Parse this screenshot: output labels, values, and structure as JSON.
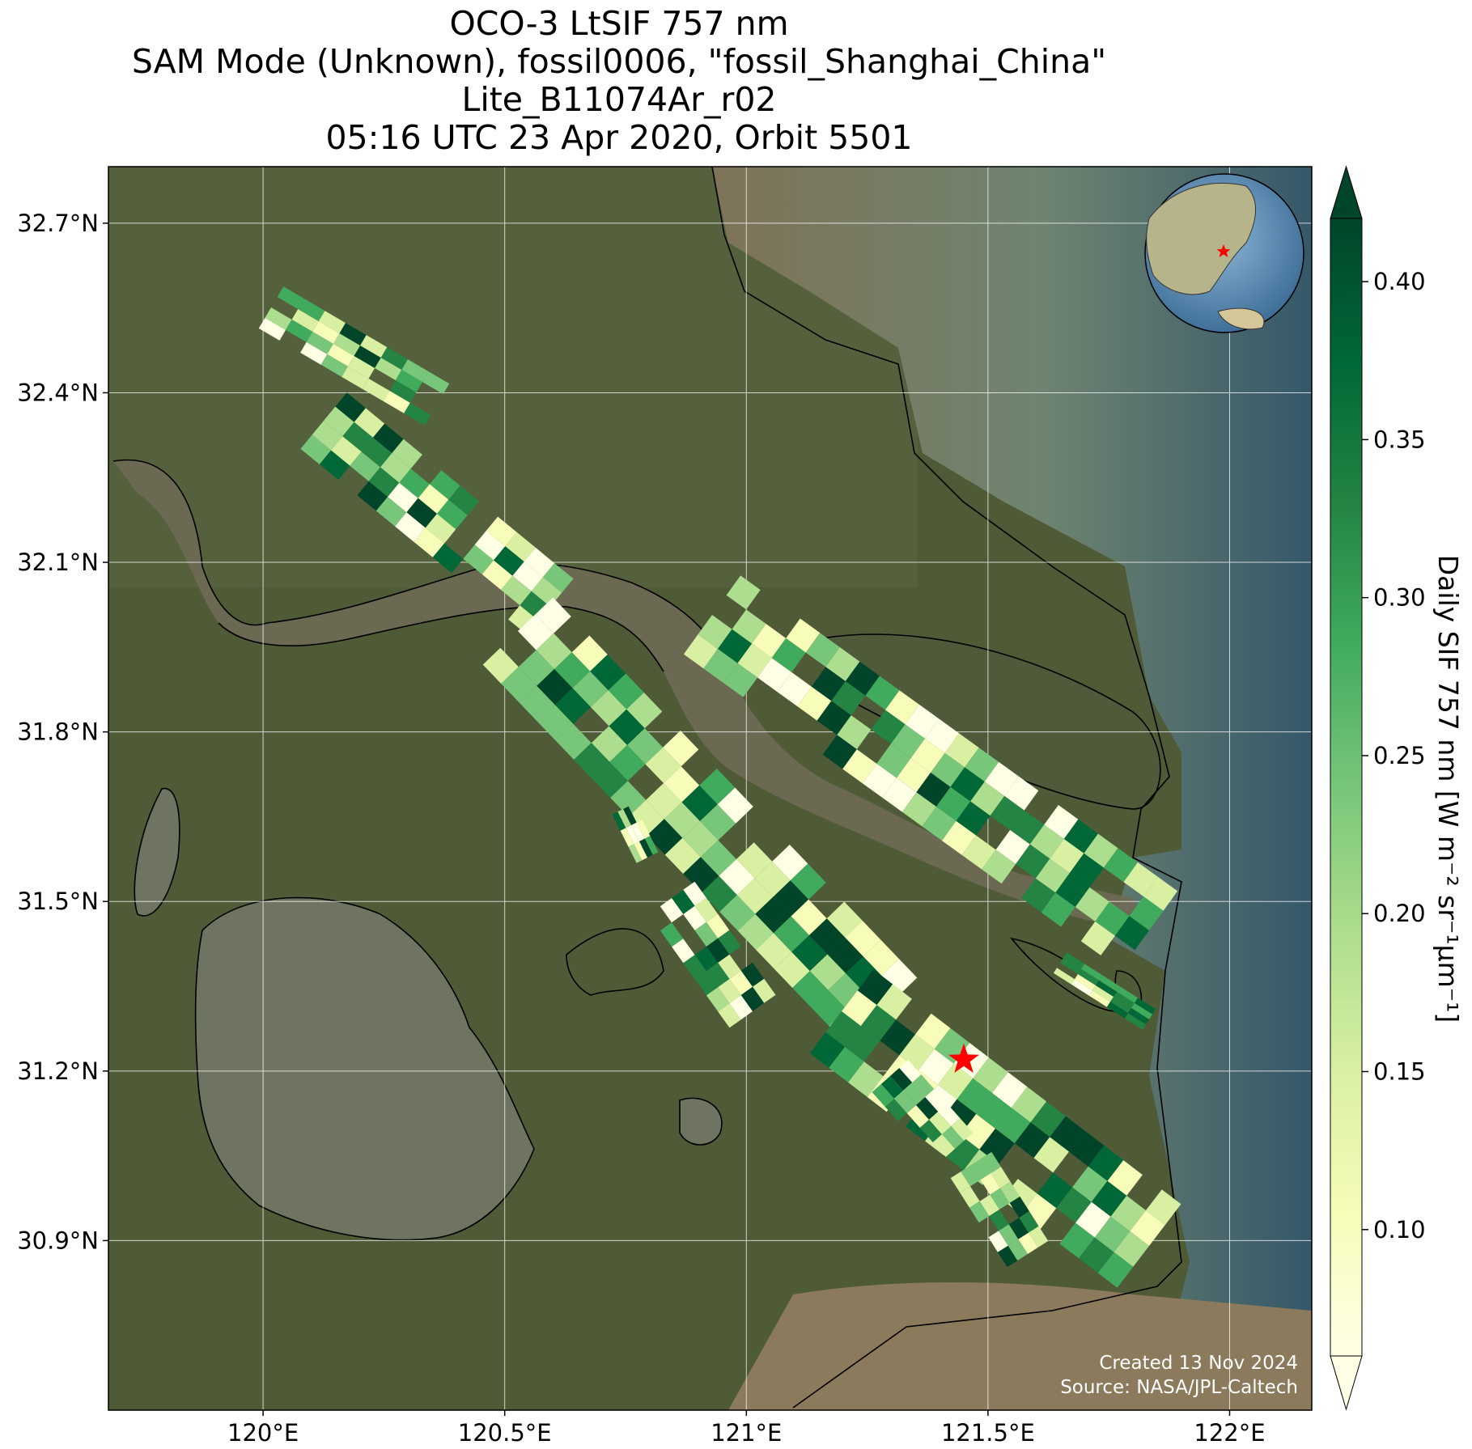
{
  "title": {
    "line1": "OCO-3 LtSIF 757 nm",
    "line2": "SAM Mode (Unknown), fossil0006, \"fossil_Shanghai_China\"",
    "line3": "Lite_B11074Ar_r02",
    "line4": "05:16 UTC 23 Apr 2020, Orbit 5501"
  },
  "axes": {
    "lon_ticks": [
      "120°E",
      "120.5°E",
      "121°E",
      "121.5°E",
      "122°E"
    ],
    "lat_ticks": [
      "32.7°N",
      "32.4°N",
      "32.1°N",
      "31.8°N",
      "31.5°N",
      "31.2°N",
      "30.9°N"
    ],
    "lon_values": [
      120.0,
      120.5,
      121.0,
      121.5,
      122.0
    ],
    "lat_values": [
      32.7,
      32.4,
      32.1,
      31.8,
      31.5,
      31.2,
      30.9
    ],
    "lon_range": [
      119.68,
      122.17
    ],
    "lat_range": [
      30.6,
      32.8
    ]
  },
  "colorbar": {
    "label": "Daily SIF 757 nm [W m⁻² sr⁻¹μm⁻¹]",
    "ticks": [
      "0.10",
      "0.15",
      "0.20",
      "0.25",
      "0.30",
      "0.35",
      "0.40"
    ],
    "tick_values": [
      0.1,
      0.15,
      0.2,
      0.25,
      0.3,
      0.35,
      0.4
    ],
    "range": [
      0.06,
      0.42
    ],
    "extend": "both",
    "colormap": "YlGn",
    "colors": [
      "#ffffe5",
      "#f7fcb9",
      "#d9f0a3",
      "#addd8e",
      "#78c679",
      "#41ab5d",
      "#238443",
      "#006837",
      "#004529"
    ]
  },
  "target": {
    "name": "fossil_Shanghai_China",
    "lon": 121.45,
    "lat": 31.22,
    "marker_color": "#ff0000"
  },
  "credits": {
    "created": "Created 13 Nov 2024",
    "source": "Source: NASA/JPL-Caltech"
  },
  "inset": {
    "description_marker_color": "#ff0000"
  },
  "colors": {
    "land": "#4f5a37",
    "water_muddy": "#8a7f63",
    "sea": "#5b8a78",
    "coastline": "#000000",
    "grid": "#ffffff"
  }
}
